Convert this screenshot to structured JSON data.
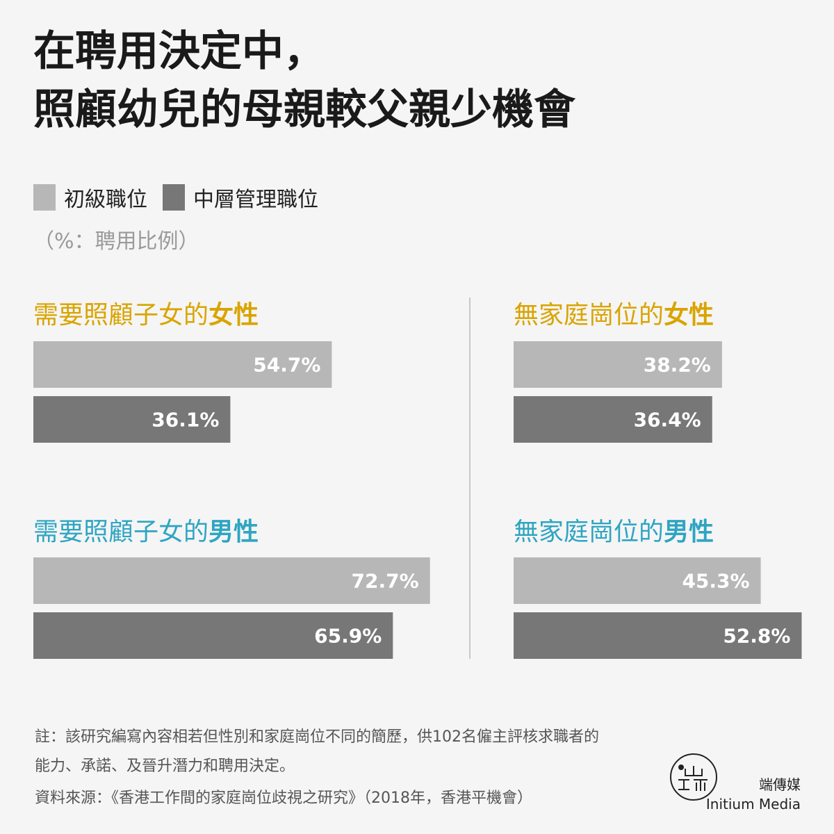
{
  "title": {
    "line1": "在聘用決定中，",
    "line2": "照顧幼兒的母親較父親少機會"
  },
  "legend": {
    "items": [
      {
        "label": "初級職位",
        "color": "#b7b7b7"
      },
      {
        "label": "中層管理職位",
        "color": "#777777"
      }
    ]
  },
  "unit_label": "（%：聘用比例）",
  "chart_data": {
    "type": "bar",
    "orientation": "horizontal",
    "xlim": [
      0,
      80
    ],
    "series_names": [
      "初級職位",
      "中層管理職位"
    ],
    "colors": {
      "junior": "#b7b7b7",
      "middle": "#777777",
      "female": "#d9a400",
      "male": "#2ea5c2"
    },
    "panels": [
      {
        "title_prefix": "需要照顧子女的",
        "title_emph": "女性",
        "group": "female",
        "values": [
          54.7,
          36.1
        ],
        "labels": [
          "54.7%",
          "36.1%"
        ]
      },
      {
        "title_prefix": "無家庭崗位的",
        "title_emph": "女性",
        "group": "female",
        "values": [
          38.2,
          36.4
        ],
        "labels": [
          "38.2%",
          "36.4%"
        ]
      },
      {
        "title_prefix": "需要照顧子女的",
        "title_emph": "男性",
        "group": "male",
        "values": [
          72.7,
          65.9
        ],
        "labels": [
          "72.7%",
          "65.9%"
        ]
      },
      {
        "title_prefix": "無家庭崗位的",
        "title_emph": "男性",
        "group": "male",
        "values": [
          45.3,
          52.8
        ],
        "labels": [
          "45.3%",
          "52.8%"
        ]
      }
    ]
  },
  "note": {
    "line1": "註：該研究編寫內容相若但性別和家庭崗位不同的簡歷，供102名僱主評核求職者的",
    "line2": "能力、承諾、及晉升潛力和聘用決定。"
  },
  "source": "資料來源：《香港工作間的家庭崗位歧視之研究》（2018年，香港平機會）",
  "brand": {
    "name_zh": "端傳媒",
    "name_en": "Initium Media"
  }
}
